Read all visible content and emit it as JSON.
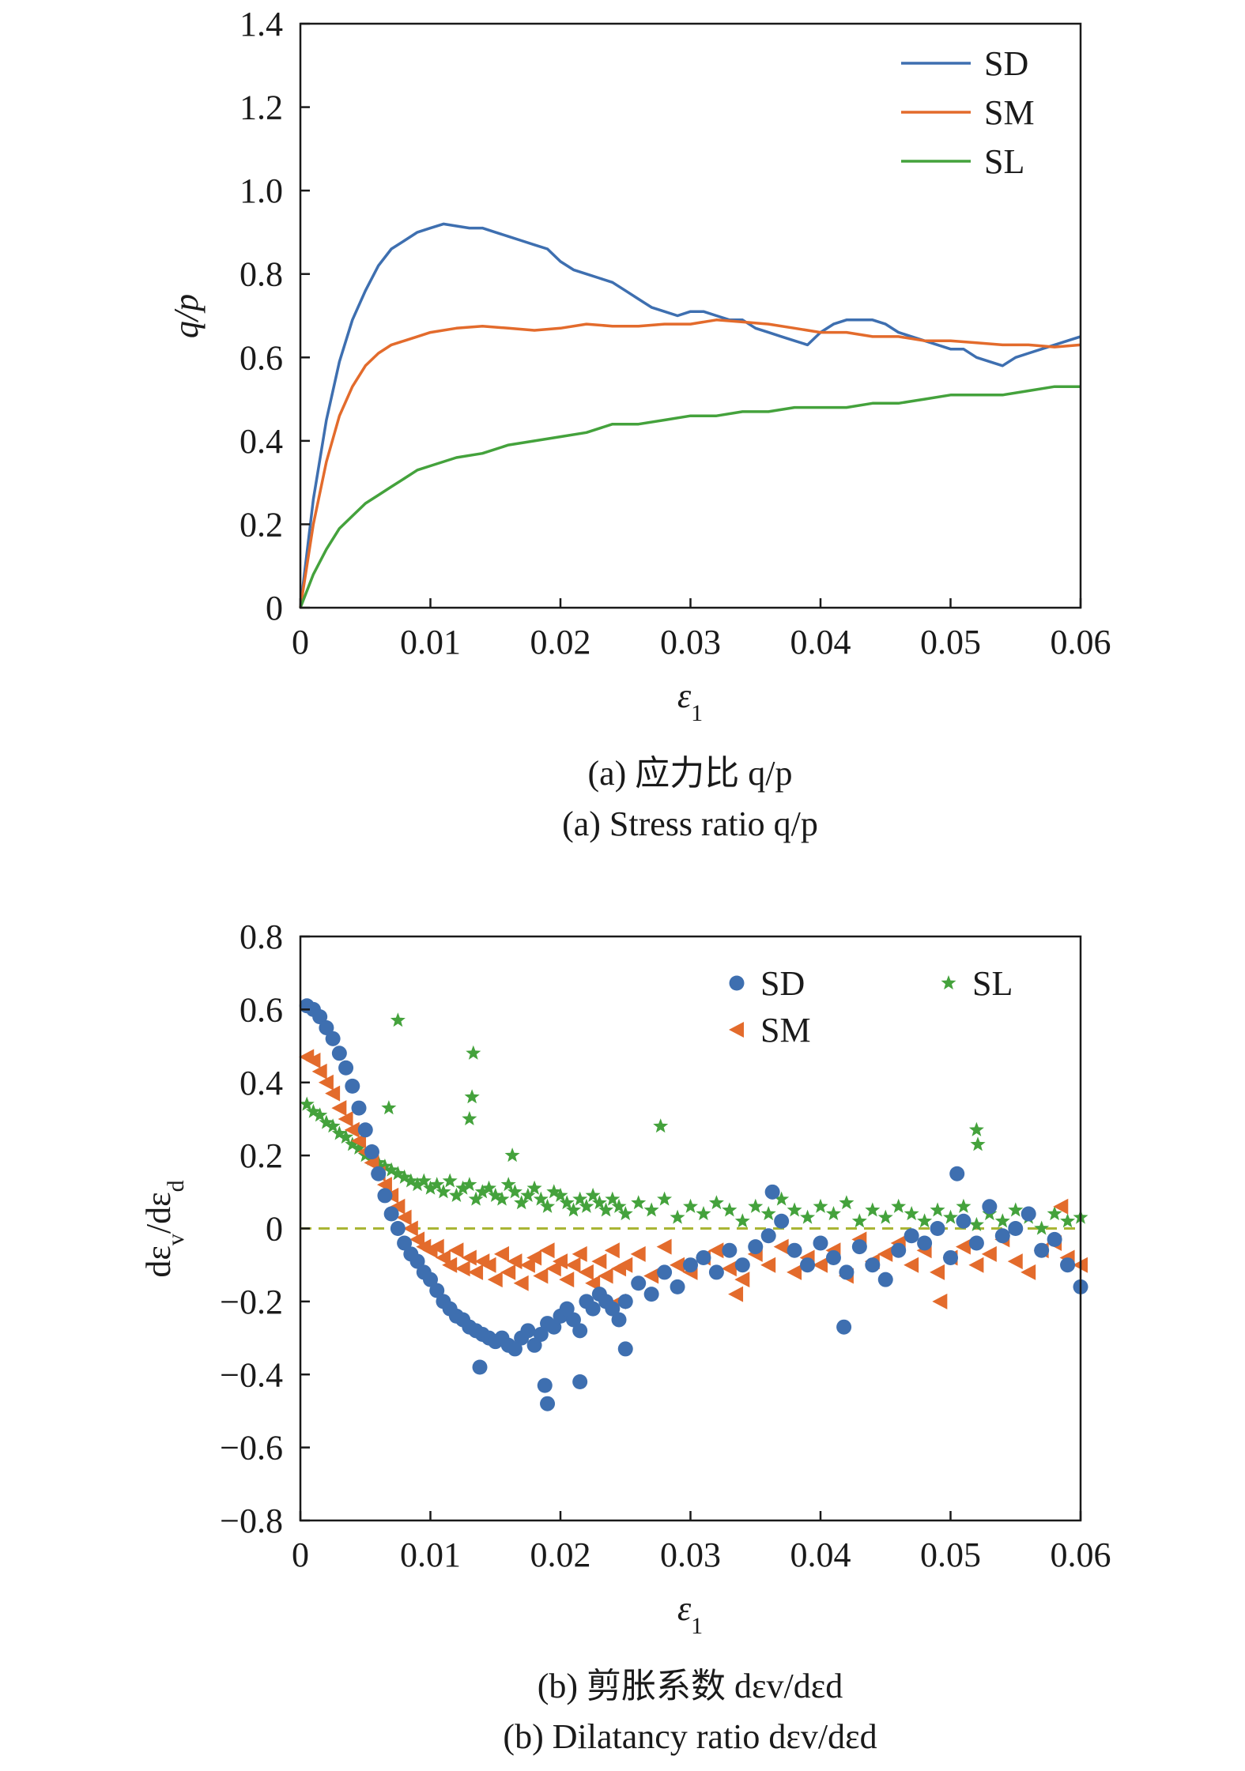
{
  "chart_data": [
    {
      "id": "a",
      "type": "line",
      "xlabel": "ε1",
      "ylabel": "q/p",
      "xlim": [
        0,
        0.06
      ],
      "ylim": [
        0,
        1.4
      ],
      "xticks": [
        "0",
        "0.01",
        "0.02",
        "0.03",
        "0.04",
        "0.05",
        "0.06"
      ],
      "yticks": [
        "0",
        "0.2",
        "0.4",
        "0.6",
        "0.8",
        "1.0",
        "1.2",
        "1.4"
      ],
      "legend_position": "top-right",
      "caption_zh": "(a) 应力比 q/p",
      "caption_en": "(a) Stress ratio q/p",
      "series": [
        {
          "name": "SD",
          "color": "#3e6fb0",
          "x": [
            0,
            0.001,
            0.002,
            0.003,
            0.004,
            0.005,
            0.006,
            0.007,
            0.008,
            0.009,
            0.01,
            0.011,
            0.012,
            0.013,
            0.014,
            0.015,
            0.016,
            0.017,
            0.018,
            0.019,
            0.02,
            0.021,
            0.022,
            0.023,
            0.024,
            0.025,
            0.026,
            0.027,
            0.028,
            0.029,
            0.03,
            0.031,
            0.032,
            0.033,
            0.034,
            0.035,
            0.036,
            0.037,
            0.038,
            0.039,
            0.04,
            0.041,
            0.042,
            0.043,
            0.044,
            0.045,
            0.046,
            0.047,
            0.048,
            0.049,
            0.05,
            0.051,
            0.052,
            0.053,
            0.054,
            0.055,
            0.056,
            0.057,
            0.058,
            0.059,
            0.06
          ],
          "y": [
            0,
            0.26,
            0.45,
            0.59,
            0.69,
            0.76,
            0.82,
            0.86,
            0.88,
            0.9,
            0.91,
            0.92,
            0.915,
            0.91,
            0.91,
            0.9,
            0.89,
            0.88,
            0.87,
            0.86,
            0.83,
            0.81,
            0.8,
            0.79,
            0.78,
            0.76,
            0.74,
            0.72,
            0.71,
            0.7,
            0.71,
            0.71,
            0.7,
            0.69,
            0.69,
            0.67,
            0.66,
            0.65,
            0.64,
            0.63,
            0.66,
            0.68,
            0.69,
            0.69,
            0.69,
            0.68,
            0.66,
            0.65,
            0.64,
            0.63,
            0.62,
            0.62,
            0.6,
            0.59,
            0.58,
            0.6,
            0.61,
            0.62,
            0.63,
            0.64,
            0.65
          ]
        },
        {
          "name": "SM",
          "color": "#e36b2c",
          "x": [
            0,
            0.001,
            0.002,
            0.003,
            0.004,
            0.005,
            0.006,
            0.007,
            0.008,
            0.009,
            0.01,
            0.012,
            0.014,
            0.016,
            0.018,
            0.02,
            0.022,
            0.024,
            0.026,
            0.028,
            0.03,
            0.032,
            0.034,
            0.036,
            0.038,
            0.04,
            0.042,
            0.044,
            0.046,
            0.048,
            0.05,
            0.052,
            0.054,
            0.056,
            0.058,
            0.06
          ],
          "y": [
            0,
            0.2,
            0.35,
            0.46,
            0.53,
            0.58,
            0.61,
            0.63,
            0.64,
            0.65,
            0.66,
            0.67,
            0.675,
            0.67,
            0.665,
            0.67,
            0.68,
            0.675,
            0.675,
            0.68,
            0.68,
            0.69,
            0.685,
            0.68,
            0.67,
            0.66,
            0.66,
            0.65,
            0.65,
            0.64,
            0.64,
            0.635,
            0.63,
            0.63,
            0.625,
            0.63
          ]
        },
        {
          "name": "SL",
          "color": "#44a23c",
          "x": [
            0,
            0.001,
            0.002,
            0.003,
            0.004,
            0.005,
            0.006,
            0.007,
            0.008,
            0.009,
            0.01,
            0.012,
            0.014,
            0.016,
            0.018,
            0.02,
            0.022,
            0.024,
            0.026,
            0.028,
            0.03,
            0.032,
            0.034,
            0.036,
            0.038,
            0.04,
            0.042,
            0.044,
            0.046,
            0.048,
            0.05,
            0.052,
            0.054,
            0.056,
            0.058,
            0.06
          ],
          "y": [
            0,
            0.08,
            0.14,
            0.19,
            0.22,
            0.25,
            0.27,
            0.29,
            0.31,
            0.33,
            0.34,
            0.36,
            0.37,
            0.39,
            0.4,
            0.41,
            0.42,
            0.44,
            0.44,
            0.45,
            0.46,
            0.46,
            0.47,
            0.47,
            0.48,
            0.48,
            0.48,
            0.49,
            0.49,
            0.5,
            0.51,
            0.51,
            0.51,
            0.52,
            0.53,
            0.53
          ]
        }
      ]
    },
    {
      "id": "b",
      "type": "scatter",
      "xlabel": "ε1",
      "ylabel": "dεv/dεd",
      "xlim": [
        0,
        0.06
      ],
      "ylim": [
        -0.8,
        0.8
      ],
      "xticks": [
        "0",
        "0.01",
        "0.02",
        "0.03",
        "0.04",
        "0.05",
        "0.06"
      ],
      "yticks": [
        "−0.8",
        "−0.6",
        "−0.4",
        "−0.2",
        "0",
        "0.2",
        "0.4",
        "0.6",
        "0.8"
      ],
      "reference_line": {
        "y": 0,
        "style": "dashed",
        "color": "#a9b534"
      },
      "legend_position": "top",
      "caption_zh": "(b) 剪胀系数 dεv/dεd",
      "caption_en": "(b) Dilatancy ratio dεv/dεd",
      "series": [
        {
          "name": "SD",
          "marker": "circle",
          "color": "#3e6fb0",
          "x": [
            0.0005,
            0.001,
            0.0015,
            0.002,
            0.0025,
            0.003,
            0.0035,
            0.004,
            0.0045,
            0.005,
            0.0055,
            0.006,
            0.0065,
            0.007,
            0.0075,
            0.008,
            0.0085,
            0.009,
            0.0095,
            0.01,
            0.0105,
            0.011,
            0.0115,
            0.012,
            0.0125,
            0.013,
            0.0135,
            0.014,
            0.0145,
            0.015,
            0.0155,
            0.016,
            0.0165,
            0.017,
            0.0175,
            0.018,
            0.0185,
            0.019,
            0.0195,
            0.02,
            0.0205,
            0.021,
            0.0215,
            0.022,
            0.0225,
            0.023,
            0.0235,
            0.024,
            0.0245,
            0.025,
            0.026,
            0.027,
            0.028,
            0.029,
            0.03,
            0.031,
            0.032,
            0.033,
            0.034,
            0.035,
            0.036,
            0.037,
            0.038,
            0.039,
            0.04,
            0.041,
            0.042,
            0.043,
            0.044,
            0.045,
            0.046,
            0.047,
            0.048,
            0.049,
            0.05,
            0.051,
            0.052,
            0.053,
            0.054,
            0.055,
            0.056,
            0.057,
            0.058,
            0.059,
            0.06,
            0.0138,
            0.0188,
            0.0215,
            0.019,
            0.025,
            0.0418,
            0.0505,
            0.0363
          ],
          "y": [
            0.61,
            0.6,
            0.58,
            0.55,
            0.52,
            0.48,
            0.44,
            0.39,
            0.33,
            0.27,
            0.21,
            0.15,
            0.09,
            0.04,
            0.0,
            -0.04,
            -0.07,
            -0.09,
            -0.12,
            -0.14,
            -0.17,
            -0.2,
            -0.22,
            -0.24,
            -0.25,
            -0.27,
            -0.28,
            -0.29,
            -0.3,
            -0.31,
            -0.3,
            -0.32,
            -0.33,
            -0.3,
            -0.28,
            -0.32,
            -0.29,
            -0.26,
            -0.27,
            -0.24,
            -0.22,
            -0.25,
            -0.28,
            -0.2,
            -0.22,
            -0.18,
            -0.2,
            -0.22,
            -0.25,
            -0.2,
            -0.15,
            -0.18,
            -0.12,
            -0.16,
            -0.1,
            -0.08,
            -0.12,
            -0.06,
            -0.1,
            -0.05,
            -0.02,
            0.02,
            -0.06,
            -0.1,
            -0.04,
            -0.08,
            -0.12,
            -0.05,
            -0.1,
            -0.14,
            -0.06,
            -0.02,
            -0.04,
            0.0,
            -0.08,
            0.02,
            -0.04,
            0.06,
            -0.02,
            0.0,
            0.04,
            -0.06,
            -0.03,
            -0.1,
            -0.16,
            -0.38,
            -0.43,
            -0.42,
            -0.48,
            -0.33,
            -0.27,
            0.15,
            0.1
          ]
        },
        {
          "name": "SM",
          "marker": "triangle",
          "color": "#e36b2c",
          "x": [
            0.0005,
            0.001,
            0.0015,
            0.002,
            0.0025,
            0.003,
            0.0035,
            0.004,
            0.0045,
            0.005,
            0.0055,
            0.006,
            0.0065,
            0.007,
            0.0075,
            0.008,
            0.0085,
            0.009,
            0.0095,
            0.01,
            0.0105,
            0.011,
            0.0115,
            0.012,
            0.0125,
            0.013,
            0.0135,
            0.014,
            0.0145,
            0.015,
            0.0155,
            0.016,
            0.0165,
            0.017,
            0.0175,
            0.018,
            0.0185,
            0.019,
            0.0195,
            0.02,
            0.0205,
            0.021,
            0.0215,
            0.022,
            0.0225,
            0.023,
            0.0235,
            0.024,
            0.0245,
            0.025,
            0.026,
            0.027,
            0.028,
            0.029,
            0.03,
            0.031,
            0.032,
            0.033,
            0.034,
            0.035,
            0.036,
            0.037,
            0.038,
            0.039,
            0.04,
            0.041,
            0.042,
            0.043,
            0.044,
            0.045,
            0.046,
            0.047,
            0.048,
            0.049,
            0.05,
            0.051,
            0.052,
            0.053,
            0.054,
            0.055,
            0.056,
            0.057,
            0.058,
            0.059,
            0.06,
            0.0245,
            0.0335,
            0.0492,
            0.0585
          ],
          "y": [
            0.47,
            0.46,
            0.43,
            0.4,
            0.37,
            0.33,
            0.3,
            0.27,
            0.24,
            0.21,
            0.18,
            0.15,
            0.12,
            0.09,
            0.06,
            0.03,
            0.0,
            -0.03,
            -0.05,
            -0.06,
            -0.05,
            -0.08,
            -0.1,
            -0.06,
            -0.11,
            -0.08,
            -0.12,
            -0.09,
            -0.1,
            -0.14,
            -0.07,
            -0.12,
            -0.09,
            -0.15,
            -0.1,
            -0.08,
            -0.13,
            -0.06,
            -0.11,
            -0.09,
            -0.14,
            -0.1,
            -0.07,
            -0.12,
            -0.15,
            -0.09,
            -0.13,
            -0.06,
            -0.11,
            -0.1,
            -0.07,
            -0.13,
            -0.05,
            -0.1,
            -0.12,
            -0.08,
            -0.06,
            -0.11,
            -0.14,
            -0.07,
            -0.1,
            -0.05,
            -0.12,
            -0.08,
            -0.1,
            -0.06,
            -0.13,
            -0.03,
            -0.09,
            -0.07,
            -0.04,
            -0.1,
            -0.06,
            -0.12,
            -0.08,
            -0.05,
            -0.1,
            -0.07,
            -0.03,
            -0.09,
            -0.12,
            -0.06,
            -0.04,
            -0.08,
            -0.1,
            -0.2,
            -0.18,
            -0.2,
            0.06
          ]
        },
        {
          "name": "SL",
          "marker": "star",
          "color": "#44a23c",
          "x": [
            0.0005,
            0.001,
            0.0015,
            0.002,
            0.0025,
            0.003,
            0.0035,
            0.004,
            0.0045,
            0.005,
            0.0055,
            0.006,
            0.0065,
            0.007,
            0.0075,
            0.008,
            0.0085,
            0.009,
            0.0095,
            0.01,
            0.0105,
            0.011,
            0.0115,
            0.012,
            0.0125,
            0.013,
            0.0135,
            0.014,
            0.0145,
            0.015,
            0.0155,
            0.016,
            0.0165,
            0.017,
            0.0175,
            0.018,
            0.0185,
            0.019,
            0.0195,
            0.02,
            0.0205,
            0.021,
            0.0215,
            0.022,
            0.0225,
            0.023,
            0.0235,
            0.024,
            0.0245,
            0.025,
            0.026,
            0.027,
            0.028,
            0.029,
            0.03,
            0.031,
            0.032,
            0.033,
            0.034,
            0.035,
            0.036,
            0.037,
            0.038,
            0.039,
            0.04,
            0.041,
            0.042,
            0.043,
            0.044,
            0.045,
            0.046,
            0.047,
            0.048,
            0.049,
            0.05,
            0.051,
            0.052,
            0.053,
            0.054,
            0.055,
            0.056,
            0.057,
            0.058,
            0.059,
            0.06,
            0.0075,
            0.0133,
            0.0132,
            0.013,
            0.0277,
            0.052,
            0.0521,
            0.0068,
            0.0163
          ],
          "y": [
            0.34,
            0.32,
            0.31,
            0.29,
            0.28,
            0.26,
            0.25,
            0.23,
            0.22,
            0.2,
            0.19,
            0.18,
            0.17,
            0.16,
            0.15,
            0.14,
            0.13,
            0.12,
            0.13,
            0.11,
            0.12,
            0.1,
            0.13,
            0.09,
            0.11,
            0.12,
            0.08,
            0.1,
            0.11,
            0.09,
            0.08,
            0.12,
            0.1,
            0.07,
            0.09,
            0.11,
            0.08,
            0.06,
            0.1,
            0.09,
            0.07,
            0.05,
            0.08,
            0.06,
            0.09,
            0.07,
            0.05,
            0.08,
            0.06,
            0.04,
            0.07,
            0.05,
            0.08,
            0.03,
            0.06,
            0.04,
            0.07,
            0.05,
            0.02,
            0.06,
            0.04,
            0.08,
            0.05,
            0.03,
            0.06,
            0.04,
            0.07,
            0.02,
            0.05,
            0.03,
            0.06,
            0.04,
            0.02,
            0.05,
            0.03,
            0.06,
            0.01,
            0.04,
            0.02,
            0.05,
            0.03,
            0.0,
            0.04,
            0.02,
            0.03,
            0.57,
            0.48,
            0.36,
            0.3,
            0.28,
            0.27,
            0.23,
            0.33,
            0.2
          ]
        }
      ]
    }
  ]
}
